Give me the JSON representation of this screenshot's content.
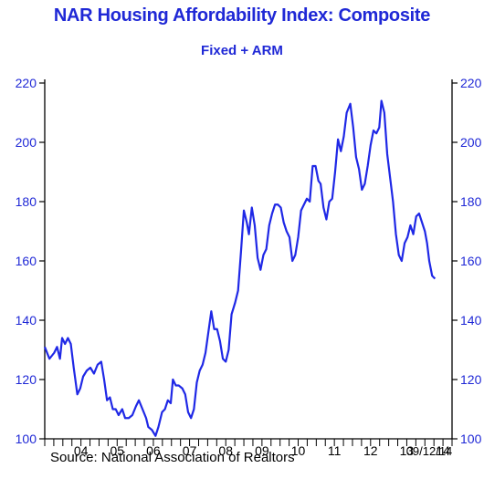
{
  "chart_data": {
    "type": "line",
    "title": "NAR Housing Affordability Index: Composite",
    "subtitle": "Fixed + ARM",
    "ylim": [
      100,
      220
    ],
    "yticks": [
      100,
      120,
      140,
      160,
      180,
      200,
      220
    ],
    "xlim": [
      2003.0,
      2014.25
    ],
    "xtick_labels": [
      {
        "x": 2004,
        "label": "04"
      },
      {
        "x": 2005,
        "label": "05"
      },
      {
        "x": 2006,
        "label": "06"
      },
      {
        "x": 2007,
        "label": "07"
      },
      {
        "x": 2008,
        "label": "08"
      },
      {
        "x": 2009,
        "label": "09"
      },
      {
        "x": 2010,
        "label": "10"
      },
      {
        "x": 2011,
        "label": "11"
      },
      {
        "x": 2012,
        "label": "12"
      },
      {
        "x": 2013,
        "label": "13"
      },
      {
        "x": 2014,
        "label": "14"
      }
    ],
    "series": [
      {
        "line_color": "#1f28e6",
        "points": [
          [
            2003.0,
            131
          ],
          [
            2003.13,
            127
          ],
          [
            2003.26,
            129
          ],
          [
            2003.34,
            131
          ],
          [
            2003.42,
            127
          ],
          [
            2003.48,
            134
          ],
          [
            2003.56,
            132
          ],
          [
            2003.64,
            134
          ],
          [
            2003.72,
            132
          ],
          [
            2003.8,
            124
          ],
          [
            2003.9,
            115
          ],
          [
            2003.98,
            117
          ],
          [
            2004.06,
            121
          ],
          [
            2004.16,
            123
          ],
          [
            2004.26,
            124
          ],
          [
            2004.36,
            122
          ],
          [
            2004.46,
            125
          ],
          [
            2004.56,
            126
          ],
          [
            2004.64,
            120
          ],
          [
            2004.72,
            113
          ],
          [
            2004.8,
            114
          ],
          [
            2004.88,
            110
          ],
          [
            2004.96,
            110
          ],
          [
            2005.04,
            108
          ],
          [
            2005.14,
            110
          ],
          [
            2005.22,
            107
          ],
          [
            2005.32,
            107
          ],
          [
            2005.42,
            108
          ],
          [
            2005.52,
            111
          ],
          [
            2005.6,
            113
          ],
          [
            2005.7,
            110
          ],
          [
            2005.8,
            107
          ],
          [
            2005.86,
            104
          ],
          [
            2005.96,
            103
          ],
          [
            2006.06,
            101
          ],
          [
            2006.14,
            104
          ],
          [
            2006.24,
            109
          ],
          [
            2006.32,
            110
          ],
          [
            2006.4,
            113
          ],
          [
            2006.48,
            112
          ],
          [
            2006.54,
            120
          ],
          [
            2006.62,
            118
          ],
          [
            2006.7,
            118
          ],
          [
            2006.8,
            117
          ],
          [
            2006.88,
            115
          ],
          [
            2006.96,
            109
          ],
          [
            2007.04,
            107
          ],
          [
            2007.12,
            110
          ],
          [
            2007.2,
            119
          ],
          [
            2007.28,
            123
          ],
          [
            2007.36,
            125
          ],
          [
            2007.44,
            129
          ],
          [
            2007.52,
            136
          ],
          [
            2007.6,
            143
          ],
          [
            2007.68,
            137
          ],
          [
            2007.76,
            137
          ],
          [
            2007.84,
            133
          ],
          [
            2007.92,
            127
          ],
          [
            2008.0,
            126
          ],
          [
            2008.08,
            130
          ],
          [
            2008.16,
            142
          ],
          [
            2008.26,
            146
          ],
          [
            2008.34,
            150
          ],
          [
            2008.42,
            163
          ],
          [
            2008.5,
            177
          ],
          [
            2008.58,
            173
          ],
          [
            2008.64,
            169
          ],
          [
            2008.72,
            178
          ],
          [
            2008.8,
            172
          ],
          [
            2008.88,
            161
          ],
          [
            2008.96,
            157
          ],
          [
            2009.04,
            162
          ],
          [
            2009.12,
            164
          ],
          [
            2009.2,
            172
          ],
          [
            2009.28,
            176
          ],
          [
            2009.36,
            179
          ],
          [
            2009.44,
            179
          ],
          [
            2009.52,
            178
          ],
          [
            2009.6,
            173
          ],
          [
            2009.68,
            170
          ],
          [
            2009.76,
            168
          ],
          [
            2009.84,
            160
          ],
          [
            2009.92,
            162
          ],
          [
            2010.0,
            168
          ],
          [
            2010.08,
            177
          ],
          [
            2010.16,
            179
          ],
          [
            2010.24,
            181
          ],
          [
            2010.32,
            180
          ],
          [
            2010.4,
            192
          ],
          [
            2010.48,
            192
          ],
          [
            2010.56,
            187
          ],
          [
            2010.62,
            186
          ],
          [
            2010.7,
            178
          ],
          [
            2010.78,
            174
          ],
          [
            2010.86,
            180
          ],
          [
            2010.94,
            181
          ],
          [
            2011.02,
            190
          ],
          [
            2011.1,
            201
          ],
          [
            2011.18,
            197
          ],
          [
            2011.26,
            202
          ],
          [
            2011.34,
            210
          ],
          [
            2011.44,
            213
          ],
          [
            2011.52,
            205
          ],
          [
            2011.6,
            195
          ],
          [
            2011.68,
            191
          ],
          [
            2011.76,
            184
          ],
          [
            2011.84,
            186
          ],
          [
            2011.92,
            192
          ],
          [
            2012.0,
            199
          ],
          [
            2012.08,
            204
          ],
          [
            2012.16,
            203
          ],
          [
            2012.24,
            205
          ],
          [
            2012.3,
            214
          ],
          [
            2012.38,
            210
          ],
          [
            2012.46,
            196
          ],
          [
            2012.54,
            188
          ],
          [
            2012.62,
            180
          ],
          [
            2012.7,
            169
          ],
          [
            2012.78,
            162
          ],
          [
            2012.86,
            160
          ],
          [
            2012.94,
            166
          ],
          [
            2013.02,
            168
          ],
          [
            2013.1,
            172
          ],
          [
            2013.18,
            169
          ],
          [
            2013.26,
            175
          ],
          [
            2013.34,
            176
          ],
          [
            2013.42,
            173
          ],
          [
            2013.5,
            170
          ],
          [
            2013.56,
            166
          ],
          [
            2013.62,
            160
          ],
          [
            2013.7,
            155
          ],
          [
            2013.78,
            154
          ]
        ]
      }
    ],
    "source": "Source:  National Association of Realtors",
    "date_stamp": "09/12/14"
  }
}
